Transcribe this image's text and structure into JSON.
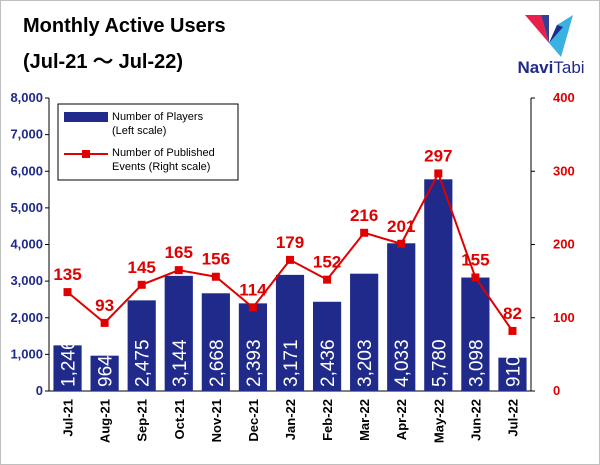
{
  "title": {
    "line1": "Monthly Active Users",
    "line2": "(Jul-21 ～ Jul-22)"
  },
  "logo": {
    "name": "NaviTabi",
    "name_part1": "Navi",
    "name_part2": "Tabi",
    "colors": [
      "#e8204a",
      "#1f2a8a",
      "#3ab1e0"
    ]
  },
  "chart_data": {
    "type": "bar",
    "categories": [
      "Jul-21",
      "Aug-21",
      "Sep-21",
      "Oct-21",
      "Nov-21",
      "Dec-21",
      "Jan-22",
      "Feb-22",
      "Mar-22",
      "Apr-22",
      "May-22",
      "Jun-22",
      "Jul-22"
    ],
    "series": [
      {
        "name": "Number of Players",
        "legend_line1": "Number of Players",
        "legend_line2": "(Left scale)",
        "type": "bar",
        "axis": "left",
        "color": "#1f2a8a",
        "values": [
          1246,
          964,
          2475,
          3144,
          2668,
          2393,
          3171,
          2436,
          3203,
          4033,
          5780,
          3098,
          910
        ],
        "labels": [
          "1,246",
          "964",
          "2,475",
          "3,144",
          "2,668",
          "2,393",
          "3,171",
          "2,436",
          "3,203",
          "4,033",
          "5,780",
          "3,098",
          "910"
        ]
      },
      {
        "name": "Number of Published Events",
        "legend_line1": "Number of Published",
        "legend_line2": "Events (Right scale)",
        "type": "line",
        "axis": "right",
        "color": "#e00000",
        "values": [
          135,
          93,
          145,
          165,
          156,
          114,
          179,
          152,
          216,
          201,
          297,
          155,
          82
        ],
        "labels": [
          "135",
          "93",
          "145",
          "165",
          "156",
          "114",
          "179",
          "152",
          "216",
          "201",
          "297",
          "155",
          "82"
        ]
      }
    ],
    "y_left": {
      "ylim": [
        0,
        8000
      ],
      "ticks": [
        0,
        1000,
        2000,
        3000,
        4000,
        5000,
        6000,
        7000,
        8000
      ],
      "tick_labels": [
        "0",
        "1,000",
        "2,000",
        "3,000",
        "4,000",
        "5,000",
        "6,000",
        "7,000",
        "8,000"
      ],
      "color": "#1f2a8a"
    },
    "y_right": {
      "ylim": [
        0,
        400
      ],
      "ticks": [
        0,
        100,
        200,
        300,
        400
      ],
      "tick_labels": [
        "0",
        "100",
        "200",
        "300",
        "400"
      ],
      "color": "#e00000"
    },
    "grid": false,
    "legend_position": "top-left"
  }
}
